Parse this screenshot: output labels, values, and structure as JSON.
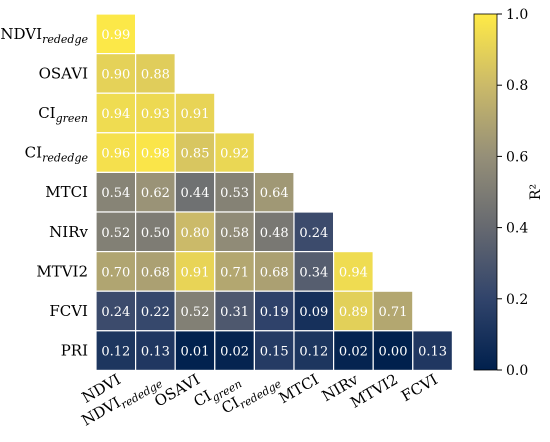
{
  "chart_data": {
    "type": "heatmap",
    "title": "",
    "colorbar_label": "R²",
    "colorbar_ticks": [
      "0.0",
      "0.2",
      "0.4",
      "0.6",
      "0.8",
      "1.0"
    ],
    "colorbar_range": [
      0,
      1
    ],
    "colormap": [
      "#00204D",
      "#31446B",
      "#666970",
      "#958F78",
      "#CBBA69",
      "#FFEA46"
    ],
    "rows": [
      {
        "main": "NDVI",
        "sub": "rededge"
      },
      {
        "main": "OSAVI",
        "sub": ""
      },
      {
        "main": "CI",
        "sub": "green"
      },
      {
        "main": "CI",
        "sub": "rededge"
      },
      {
        "main": "MTCI",
        "sub": ""
      },
      {
        "main": "NIRv",
        "sub": ""
      },
      {
        "main": "MTVI2",
        "sub": ""
      },
      {
        "main": "FCVI",
        "sub": ""
      },
      {
        "main": "PRI",
        "sub": ""
      }
    ],
    "columns": [
      {
        "main": "NDVI",
        "sub": ""
      },
      {
        "main": "NDVI",
        "sub": "rededge"
      },
      {
        "main": "OSAVI",
        "sub": ""
      },
      {
        "main": "CI",
        "sub": "green"
      },
      {
        "main": "CI",
        "sub": "rededge"
      },
      {
        "main": "MTCI",
        "sub": ""
      },
      {
        "main": "NIRv",
        "sub": ""
      },
      {
        "main": "MTVI2",
        "sub": ""
      },
      {
        "main": "FCVI",
        "sub": ""
      }
    ],
    "values": [
      [
        "0.99"
      ],
      [
        "0.90",
        "0.88"
      ],
      [
        "0.94",
        "0.93",
        "0.91"
      ],
      [
        "0.96",
        "0.98",
        "0.85",
        "0.92"
      ],
      [
        "0.54",
        "0.62",
        "0.44",
        "0.53",
        "0.64"
      ],
      [
        "0.52",
        "0.50",
        "0.80",
        "0.58",
        "0.48",
        "0.24"
      ],
      [
        "0.70",
        "0.68",
        "0.91",
        "0.71",
        "0.68",
        "0.34",
        "0.94"
      ],
      [
        "0.24",
        "0.22",
        "0.52",
        "0.31",
        "0.19",
        "0.09",
        "0.89",
        "0.71"
      ],
      [
        "0.12",
        "0.13",
        "0.01",
        "0.02",
        "0.15",
        "0.12",
        "0.02",
        "0.00",
        "0.13"
      ]
    ]
  }
}
